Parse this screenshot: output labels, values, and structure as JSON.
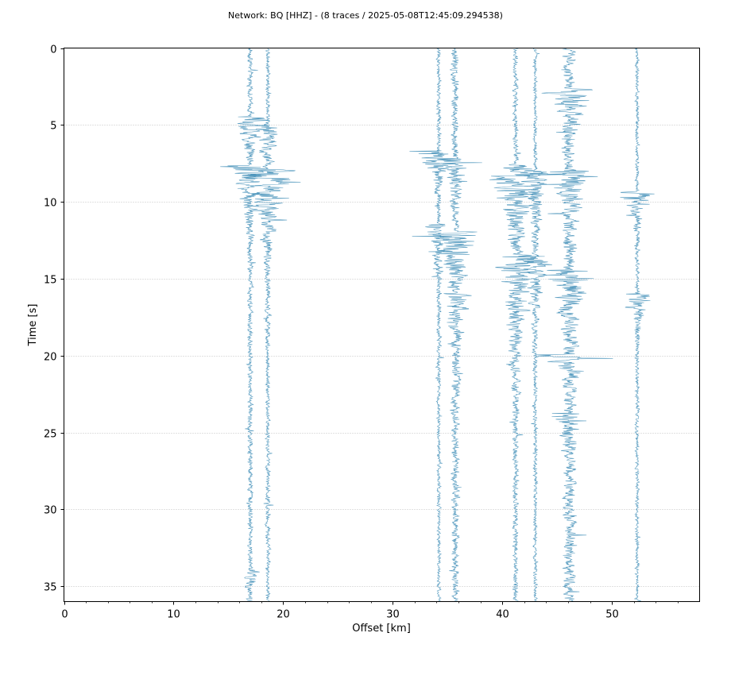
{
  "chart_data": {
    "type": "line",
    "title": "Network: BQ [HHZ] - (8 traces / 2025-05-08T12:45:09.294538)",
    "xlabel": "Offset [km]",
    "ylabel": "Time [s]",
    "xlim": [
      0,
      58
    ],
    "ylim": [
      36,
      0
    ],
    "y_inverted": true,
    "x_ticks": [
      0,
      10,
      20,
      30,
      40,
      50
    ],
    "y_ticks": [
      0,
      5,
      10,
      15,
      20,
      25,
      30,
      35
    ],
    "grid": "horizontal-dotted",
    "legend": "none",
    "trace_color": "#3b8bb5",
    "series": [
      {
        "offset_km": 17.0,
        "noise_amp": 0.35,
        "events": [
          {
            "time": 4.5,
            "amp": 2.6,
            "dur": 1.2
          },
          {
            "time": 7.7,
            "amp": 3.4,
            "dur": 1.5
          },
          {
            "time": 34.0,
            "amp": 0.7,
            "dur": 1.5
          }
        ]
      },
      {
        "offset_km": 18.6,
        "noise_amp": 0.3,
        "events": [
          {
            "time": 5.0,
            "amp": 1.8,
            "dur": 1.5
          },
          {
            "time": 7.9,
            "amp": 3.2,
            "dur": 2.0
          },
          {
            "time": 9.5,
            "amp": 1.3,
            "dur": 1.5
          }
        ]
      },
      {
        "offset_km": 34.2,
        "noise_amp": 0.25,
        "events": [
          {
            "time": 6.7,
            "amp": 4.0,
            "dur": 1.0
          },
          {
            "time": 11.5,
            "amp": 1.8,
            "dur": 1.5
          }
        ]
      },
      {
        "offset_km": 35.7,
        "noise_amp": 0.5,
        "events": [
          {
            "time": 7.2,
            "amp": 2.6,
            "dur": 1.0
          },
          {
            "time": 12.0,
            "amp": 3.5,
            "dur": 2.0
          },
          {
            "time": 16.0,
            "amp": 1.0,
            "dur": 3.0
          }
        ]
      },
      {
        "offset_km": 41.2,
        "noise_amp": 0.35,
        "events": [
          {
            "time": 7.6,
            "amp": 2.2,
            "dur": 1.0
          },
          {
            "time": 8.2,
            "amp": 3.0,
            "dur": 3.0
          },
          {
            "time": 13.5,
            "amp": 2.5,
            "dur": 3.5
          }
        ]
      },
      {
        "offset_km": 43.0,
        "noise_amp": 0.25,
        "events": [
          {
            "time": 8.0,
            "amp": 2.5,
            "dur": 2.0
          },
          {
            "time": 13.8,
            "amp": 1.8,
            "dur": 2.0
          }
        ]
      },
      {
        "offset_km": 46.1,
        "noise_amp": 0.8,
        "events": [
          {
            "time": 2.7,
            "amp": 4.0,
            "dur": 1.0
          },
          {
            "time": 8.0,
            "amp": 3.3,
            "dur": 1.5
          },
          {
            "time": 14.5,
            "amp": 2.8,
            "dur": 2.0
          },
          {
            "time": 20.0,
            "amp": 2.5,
            "dur": 0.5
          },
          {
            "time": 23.8,
            "amp": 1.8,
            "dur": 1.0
          }
        ]
      },
      {
        "offset_km": 52.3,
        "noise_amp": 0.25,
        "events": [
          {
            "time": 9.4,
            "amp": 3.6,
            "dur": 0.8
          },
          {
            "time": 16.0,
            "amp": 2.4,
            "dur": 1.0
          }
        ]
      }
    ]
  }
}
